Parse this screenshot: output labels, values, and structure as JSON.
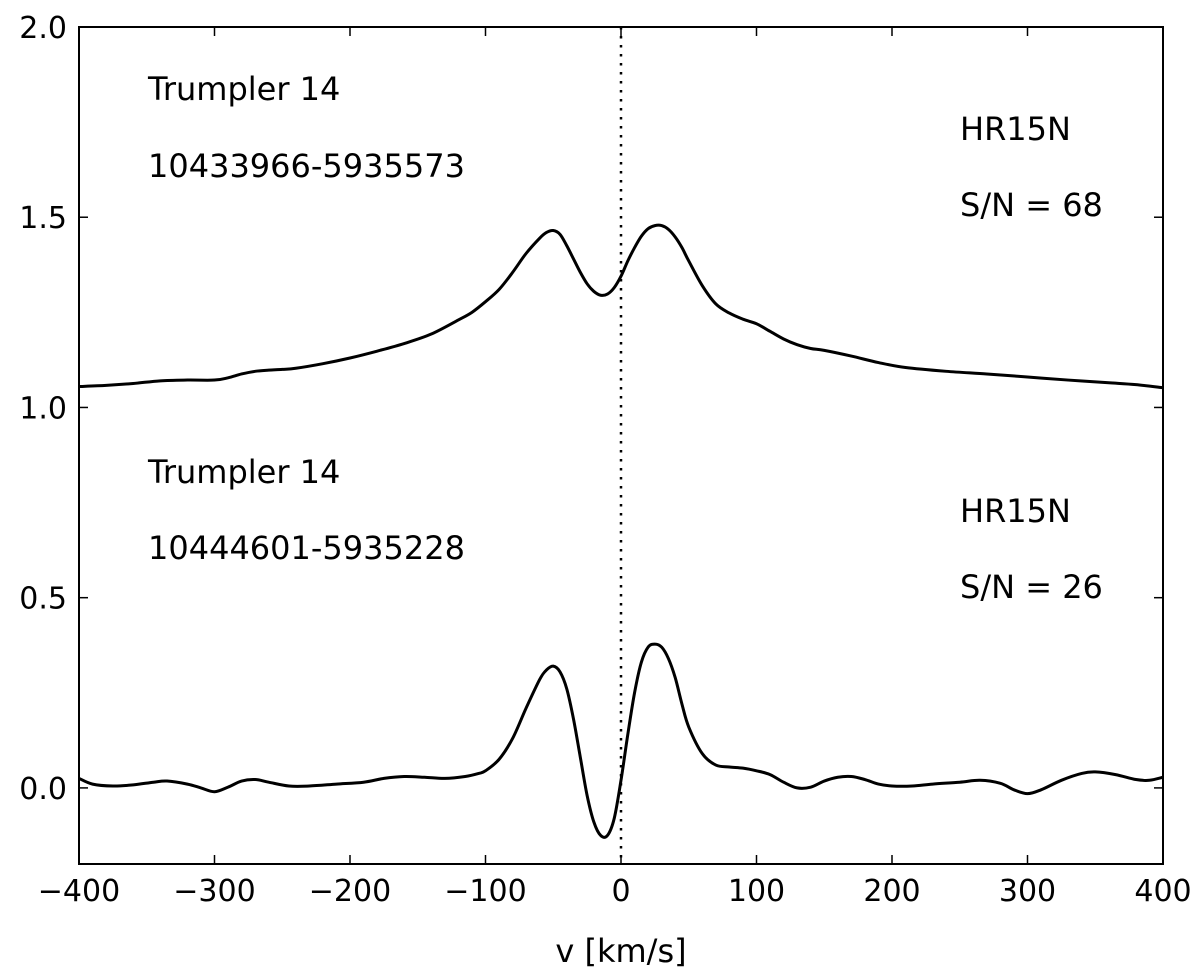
{
  "chart_data": {
    "type": "line",
    "title": "",
    "xlabel": "v [km/s]",
    "ylabel": "",
    "xlim": [
      -400,
      400
    ],
    "ylim": [
      -0.2,
      2.0
    ],
    "grid": false,
    "legend": "none",
    "x_ticks": [
      -400,
      -300,
      -200,
      -100,
      0,
      100,
      200,
      300,
      400
    ],
    "x_tick_labels": [
      "−400",
      "−300",
      "−200",
      "−100",
      "0",
      "100",
      "200",
      "300",
      "400"
    ],
    "y_ticks": [
      0.0,
      0.5,
      1.0,
      1.5,
      2.0
    ],
    "y_tick_labels": [
      "0.0",
      "0.5",
      "1.0",
      "1.5",
      "2.0"
    ],
    "reference_line": {
      "x": 0,
      "style": "dotted"
    },
    "line_color": "#000000",
    "annotations": {
      "top_cluster": "Trumpler 14",
      "top_id": "10433966-5935573",
      "top_setup": "HR15N",
      "top_snr": "S/N = 68",
      "bottom_cluster": "Trumpler 14",
      "bottom_id": "10444601-5935228",
      "bottom_setup": "HR15N",
      "bottom_snr": "S/N = 26"
    },
    "series": [
      {
        "x": [
          -400,
          -380,
          -360,
          -340,
          -320,
          -300,
          -290,
          -280,
          -270,
          -260,
          -250,
          -240,
          -220,
          -200,
          -180,
          -160,
          -140,
          -120,
          -110,
          -100,
          -90,
          -80,
          -70,
          -60,
          -55,
          -50,
          -45,
          -40,
          -35,
          -30,
          -25,
          -20,
          -15,
          -10,
          -5,
          0,
          5,
          10,
          15,
          20,
          25,
          30,
          35,
          40,
          45,
          50,
          60,
          70,
          80,
          90,
          100,
          110,
          120,
          130,
          140,
          150,
          170,
          190,
          210,
          240,
          270,
          300,
          330,
          360,
          380,
          400
        ],
        "y": [
          1.055,
          1.058,
          1.063,
          1.07,
          1.072,
          1.072,
          1.078,
          1.088,
          1.095,
          1.098,
          1.1,
          1.103,
          1.115,
          1.13,
          1.148,
          1.168,
          1.193,
          1.23,
          1.25,
          1.278,
          1.31,
          1.355,
          1.405,
          1.445,
          1.46,
          1.465,
          1.455,
          1.425,
          1.39,
          1.355,
          1.325,
          1.305,
          1.295,
          1.298,
          1.315,
          1.345,
          1.385,
          1.42,
          1.45,
          1.47,
          1.478,
          1.478,
          1.468,
          1.448,
          1.42,
          1.385,
          1.32,
          1.272,
          1.248,
          1.232,
          1.22,
          1.2,
          1.18,
          1.165,
          1.155,
          1.15,
          1.135,
          1.118,
          1.105,
          1.095,
          1.088,
          1.08,
          1.072,
          1.065,
          1.06,
          1.052
        ]
      },
      {
        "x": [
          -400,
          -390,
          -375,
          -360,
          -345,
          -335,
          -320,
          -310,
          -300,
          -290,
          -280,
          -270,
          -260,
          -245,
          -230,
          -210,
          -190,
          -175,
          -160,
          -145,
          -130,
          -115,
          -105,
          -100,
          -90,
          -80,
          -70,
          -60,
          -55,
          -50,
          -45,
          -40,
          -35,
          -30,
          -25,
          -20,
          -15,
          -10,
          -5,
          0,
          5,
          10,
          15,
          20,
          25,
          30,
          35,
          40,
          45,
          50,
          60,
          70,
          80,
          90,
          100,
          110,
          120,
          130,
          140,
          150,
          160,
          170,
          180,
          190,
          200,
          215,
          230,
          250,
          265,
          280,
          290,
          300,
          310,
          325,
          340,
          350,
          365,
          380,
          390,
          400
        ],
        "y": [
          0.025,
          0.01,
          0.005,
          0.008,
          0.015,
          0.018,
          0.01,
          0.0,
          -0.01,
          0.002,
          0.018,
          0.022,
          0.015,
          0.005,
          0.005,
          0.01,
          0.015,
          0.025,
          0.03,
          0.028,
          0.025,
          0.03,
          0.038,
          0.045,
          0.075,
          0.13,
          0.21,
          0.285,
          0.31,
          0.32,
          0.305,
          0.26,
          0.18,
          0.08,
          -0.02,
          -0.09,
          -0.125,
          -0.125,
          -0.08,
          0.02,
          0.14,
          0.25,
          0.33,
          0.37,
          0.378,
          0.37,
          0.34,
          0.29,
          0.22,
          0.16,
          0.09,
          0.06,
          0.055,
          0.052,
          0.045,
          0.035,
          0.015,
          0.0,
          0.002,
          0.018,
          0.028,
          0.03,
          0.022,
          0.01,
          0.005,
          0.005,
          0.01,
          0.015,
          0.02,
          0.012,
          -0.005,
          -0.015,
          -0.005,
          0.02,
          0.038,
          0.042,
          0.035,
          0.022,
          0.02,
          0.028
        ]
      }
    ]
  }
}
